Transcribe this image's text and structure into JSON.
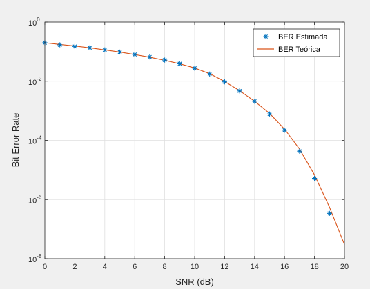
{
  "chart_data": {
    "type": "line",
    "title": "",
    "xlabel": "SNR (dB)",
    "ylabel": "Bit Error Rate",
    "xlim": [
      0,
      20
    ],
    "ylim": [
      1e-08,
      1
    ],
    "yscale": "log",
    "grid": true,
    "legend_position": "top-right",
    "x_ticks": [
      "0",
      "2",
      "4",
      "6",
      "8",
      "10",
      "12",
      "14",
      "16",
      "18",
      "20"
    ],
    "y_ticks": [
      {
        "base": "10",
        "exp": "-8",
        "value": 1e-08
      },
      {
        "base": "10",
        "exp": "-6",
        "value": 1e-06
      },
      {
        "base": "10",
        "exp": "-4",
        "value": 0.0001
      },
      {
        "base": "10",
        "exp": "-2",
        "value": 0.01
      },
      {
        "base": "10",
        "exp": "0",
        "value": 1
      }
    ],
    "series": [
      {
        "name": "BER Estimada",
        "style": "markers",
        "marker": "asterisk",
        "color": "#0072BD",
        "x": [
          0,
          1,
          2,
          3,
          4,
          5,
          6,
          7,
          8,
          9,
          10,
          11,
          12,
          13,
          14,
          15,
          16,
          17,
          18,
          19
        ],
        "values": [
          0.2,
          0.17,
          0.15,
          0.135,
          0.115,
          0.097,
          0.08,
          0.066,
          0.052,
          0.039,
          0.0275,
          0.0175,
          0.0095,
          0.0047,
          0.0021,
          0.00078,
          0.00022,
          4.3e-05,
          5.2e-06,
          3.4e-07
        ]
      },
      {
        "name": "BER Teórica",
        "style": "line",
        "color": "#D95319",
        "x": [
          0,
          1,
          2,
          3,
          4,
          5,
          6,
          7,
          8,
          9,
          10,
          11,
          12,
          13,
          14,
          15,
          16,
          17,
          18,
          19,
          20
        ],
        "values": [
          0.2,
          0.175,
          0.155,
          0.135,
          0.115,
          0.097,
          0.08,
          0.065,
          0.051,
          0.039,
          0.028,
          0.018,
          0.0098,
          0.0048,
          0.0021,
          0.00082,
          0.00024,
          5.1e-05,
          6.8e-06,
          5.5e-07,
          3e-08
        ]
      }
    ]
  }
}
